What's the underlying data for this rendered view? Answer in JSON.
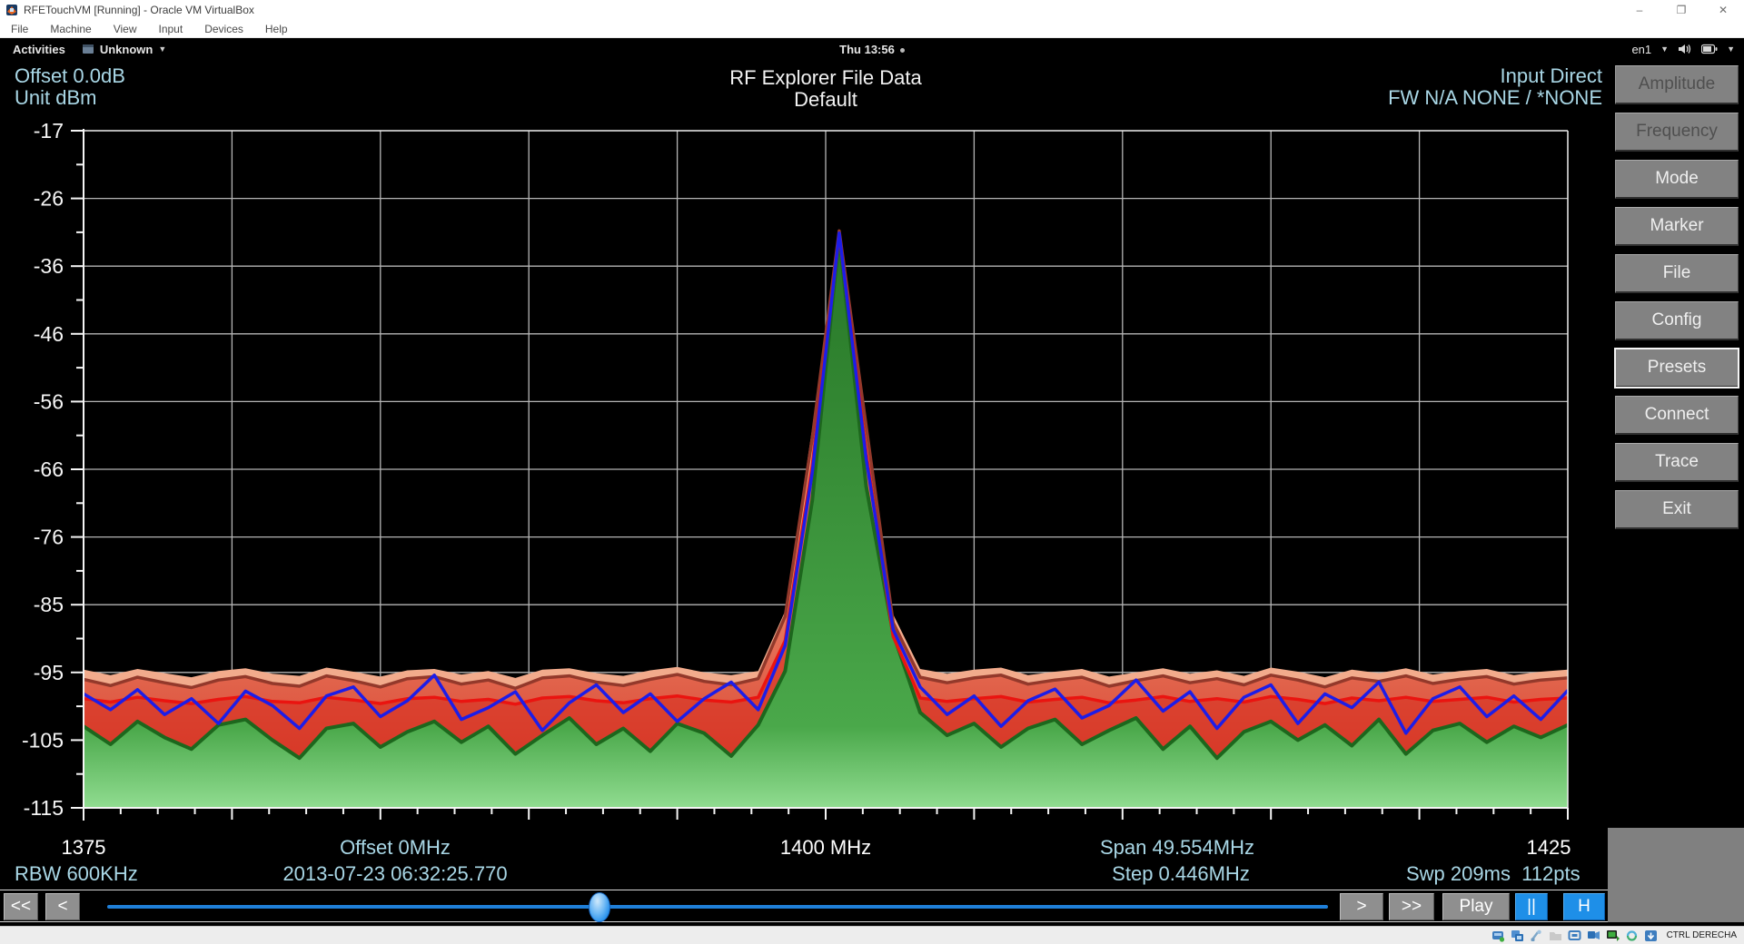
{
  "window": {
    "title": "RFETouchVM [Running] - Oracle VM VirtualBox",
    "menu": [
      "File",
      "Machine",
      "View",
      "Input",
      "Devices",
      "Help"
    ],
    "controls": {
      "minimize": "–",
      "restore": "❐",
      "close": "✕"
    }
  },
  "gnome_bar": {
    "activities": "Activities",
    "app_indicator": "Unknown",
    "clock": "Thu 13:56",
    "keyboard_layout": "en1"
  },
  "header": {
    "offset": "Offset 0.0dB",
    "unit": "Unit dBm",
    "title": "RF Explorer File Data",
    "subtitle": "Default",
    "input": "Input Direct",
    "firmware": "FW N/A  NONE / *NONE"
  },
  "sidebar": {
    "buttons": [
      {
        "label": "Amplitude"
      },
      {
        "label": "Frequency"
      },
      {
        "label": "Mode"
      },
      {
        "label": "Marker"
      },
      {
        "label": "File"
      },
      {
        "label": "Config"
      },
      {
        "label": "Presets"
      },
      {
        "label": "Connect"
      },
      {
        "label": "Trace"
      },
      {
        "label": "Exit"
      }
    ]
  },
  "footer": {
    "start_freq": "1375",
    "offset": "Offset 0MHz",
    "center_freq": "1400 MHz",
    "span": "Span 49.554MHz",
    "end_freq": "1425",
    "rbw": "RBW 600KHz",
    "timestamp": "2013-07-23 06:32:25.770",
    "step": "Step 0.446MHz",
    "sweep": "Swp 209ms  112pts"
  },
  "transport": {
    "rewind": "<<",
    "step_back": "<",
    "step_forward": ">",
    "fast_forward": ">>",
    "play": "Play",
    "pause": "||",
    "hold": "H"
  },
  "status_bar": {
    "host_key": "CTRL DERECHA",
    "icons": [
      "hdd-activity",
      "optical-drive",
      "usb",
      "shared-folders",
      "display",
      "recording",
      "network",
      "mouse-integration",
      "keyboard-capture"
    ]
  },
  "colors": {
    "cyan_text": "#a9d7e6",
    "button_gray": "#828282",
    "button_blue": "#1e8fe8",
    "slider_blue": "#1f7fd8"
  },
  "chart_data": {
    "type": "area",
    "title": "RF Explorer File Data",
    "grid": true,
    "legend": false,
    "x_axis": {
      "min": 1375,
      "max": 1425,
      "unit": "MHz",
      "labels": [
        "1375",
        "1400 MHz",
        "1425"
      ],
      "major_divisions": 10,
      "minor_per_major": 4
    },
    "y_axis": {
      "min": -115,
      "max": -17,
      "unit": "dBm",
      "ticks": [
        -17,
        -26,
        -36,
        -46,
        -56,
        -66,
        -76,
        -85,
        -95,
        -105,
        -115
      ]
    },
    "sweep": {
      "span_mhz": 49.554,
      "step_mhz": 0.446,
      "points": 112,
      "center_mhz": 1400,
      "peak_dbm": -31.5,
      "peak_mhz": 1400.2
    },
    "x_start": 1375.0,
    "x_step": 0.9091,
    "series": [
      {
        "name": "max_hold",
        "style": "fill",
        "fill": "#f2ab8c",
        "values": [
          -95.0,
          -95.8,
          -94.9,
          -95.5,
          -96.1,
          -95.2,
          -94.8,
          -95.6,
          -95.9,
          -94.7,
          -95.3,
          -96.0,
          -95.1,
          -94.9,
          -95.7,
          -95.2,
          -96.2,
          -95.0,
          -94.8,
          -95.5,
          -95.9,
          -95.1,
          -94.6,
          -95.4,
          -95.8,
          -95.2,
          -86.5,
          -60.0,
          -31.2,
          -58.5,
          -87.0,
          -94.9,
          -95.6,
          -95.0,
          -94.7,
          -95.8,
          -95.3,
          -94.9,
          -96.0,
          -95.4,
          -94.8,
          -95.6,
          -95.1,
          -95.9,
          -94.7,
          -95.3,
          -96.1,
          -95.0,
          -95.5,
          -94.8,
          -95.7,
          -95.2,
          -94.9,
          -95.8,
          -95.3,
          -95.0
        ]
      },
      {
        "name": "max",
        "style": "fill+line",
        "line": "#93392b",
        "fill_top": "#f29c7c",
        "fill_bottom": "#d53a28",
        "values": [
          -96.4,
          -97.3,
          -96.1,
          -96.9,
          -97.6,
          -96.5,
          -96.0,
          -97.0,
          -97.4,
          -95.9,
          -96.6,
          -97.5,
          -96.3,
          -96.0,
          -97.1,
          -96.5,
          -97.7,
          -96.2,
          -95.9,
          -96.8,
          -97.3,
          -96.4,
          -95.7,
          -96.7,
          -97.2,
          -96.3,
          -87.3,
          -61.5,
          -31.5,
          -59.8,
          -88.2,
          -96.1,
          -96.9,
          -96.2,
          -95.8,
          -97.1,
          -96.5,
          -96.1,
          -97.4,
          -96.6,
          -95.9,
          -96.9,
          -96.3,
          -97.2,
          -95.8,
          -96.5,
          -97.5,
          -96.2,
          -96.7,
          -95.9,
          -97.0,
          -96.4,
          -96.0,
          -97.1,
          -96.5,
          -96.2
        ]
      },
      {
        "name": "average",
        "style": "fill+line",
        "line": "#ea1410",
        "fill": "rgba(214,40,25,0.5)",
        "values": [
          -99.2,
          -99.7,
          -99.0,
          -99.5,
          -99.9,
          -99.3,
          -98.9,
          -99.6,
          -99.8,
          -99.0,
          -99.4,
          -99.9,
          -99.2,
          -99.0,
          -99.6,
          -99.3,
          -100.0,
          -99.1,
          -98.9,
          -99.5,
          -99.8,
          -99.2,
          -98.8,
          -99.4,
          -99.7,
          -99.0,
          -90.8,
          -65.5,
          -32.0,
          -63.5,
          -90.2,
          -99.1,
          -99.6,
          -99.2,
          -98.9,
          -99.7,
          -99.3,
          -99.0,
          -99.8,
          -99.4,
          -98.9,
          -99.6,
          -99.2,
          -99.7,
          -98.9,
          -99.3,
          -99.9,
          -99.1,
          -99.5,
          -99.0,
          -99.6,
          -99.3,
          -99.0,
          -99.7,
          -99.3,
          -99.1
        ]
      },
      {
        "name": "min_hold",
        "style": "fill+line",
        "line": "#1d671d",
        "fill_top": "#1f6b1f",
        "fill_mid": "#4aa84a",
        "fill_bottom": "#90dc90",
        "values": [
          -103.2,
          -105.8,
          -102.5,
          -104.8,
          -106.5,
          -103.0,
          -102.2,
          -105.2,
          -107.8,
          -103.5,
          -102.8,
          -106.2,
          -104.0,
          -102.5,
          -105.5,
          -103.2,
          -107.2,
          -104.5,
          -102.0,
          -105.8,
          -103.5,
          -106.8,
          -102.8,
          -104.2,
          -107.5,
          -103.0,
          -95.2,
          -70.5,
          -32.3,
          -68.5,
          -89.8,
          -101.2,
          -104.5,
          -102.8,
          -106.2,
          -103.5,
          -102.2,
          -105.8,
          -103.8,
          -102.0,
          -106.5,
          -103.2,
          -107.8,
          -104.0,
          -102.5,
          -105.2,
          -103.0,
          -106.0,
          -102.2,
          -107.2,
          -103.8,
          -102.8,
          -105.5,
          -103.2,
          -104.8,
          -103.0
        ]
      },
      {
        "name": "realtime",
        "style": "line",
        "line": "#1d1de8",
        "values": [
          -98.5,
          -100.8,
          -97.9,
          -101.5,
          -99.2,
          -102.8,
          -98.1,
          -100.2,
          -103.5,
          -98.8,
          -97.5,
          -101.8,
          -99.5,
          -95.8,
          -102.2,
          -100.5,
          -98.2,
          -103.8,
          -99.8,
          -97.2,
          -101.2,
          -98.5,
          -102.5,
          -99.2,
          -96.8,
          -100.8,
          -91.5,
          -66.5,
          -31.8,
          -64.5,
          -89.2,
          -97.5,
          -101.5,
          -98.8,
          -103.2,
          -99.5,
          -97.8,
          -102.0,
          -100.2,
          -96.5,
          -101.0,
          -98.2,
          -103.5,
          -99.0,
          -97.2,
          -102.8,
          -98.5,
          -100.5,
          -96.8,
          -104.2,
          -99.2,
          -97.5,
          -101.8,
          -98.8,
          -102.2,
          -98.0
        ]
      }
    ]
  }
}
